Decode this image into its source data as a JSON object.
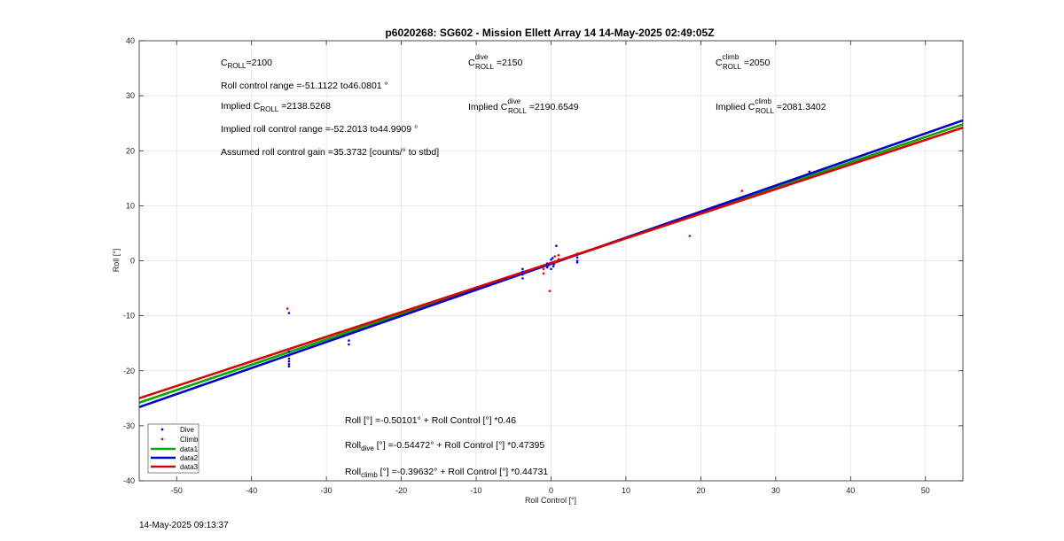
{
  "footer_timestamp": "14-May-2025 09:13:37",
  "annotations": {
    "c_roll_base": "C",
    "c_roll_sub": "ROLL",
    "c_roll_value": "=2100",
    "roll_range": "Roll control range =-51.1122 to46.0801 °",
    "implied_c_prefix": "Implied C",
    "implied_c_sub": "ROLL",
    "implied_c_value": " =2138.5268",
    "implied_range": "Implied roll control range =-52.2013 to44.9909 °",
    "gain": "Assumed roll control gain =35.3732 [counts/° to stbd]",
    "c_dive_base": "C",
    "c_dive_sup": "dive",
    "c_dive_sub": "ROLL",
    "c_dive_value": " =2150",
    "implied_dive_prefix": "Implied C",
    "implied_dive_sup": "dive",
    "implied_dive_sub": "ROLL",
    "implied_dive_value": " =2190.6549",
    "c_climb_base": "C",
    "c_climb_sup": "climb",
    "c_climb_sub": "ROLL",
    "c_climb_value": " =2050",
    "implied_climb_prefix": "Implied C",
    "implied_climb_sup": "climb",
    "implied_climb_sub": "ROLL",
    "implied_climb_value": " =2081.3402",
    "eq_all": "Roll [°] =-0.50101° + Roll Control [°] *0.46",
    "eq_dive_prefix": "Roll",
    "eq_dive_sub": "dive",
    "eq_dive_rest": " [°] =-0.54472° + Roll Control [°] *0.47395",
    "eq_climb_prefix": "Roll",
    "eq_climb_sub": "climb",
    "eq_climb_rest": " [°] =-0.39632° + Roll Control [°] *0.44731"
  },
  "chart_data": {
    "type": "scatter",
    "title": "p6020268: SG602 - Mission Ellett Array 14 14-May-2025 02:49:05Z",
    "xlabel": "Roll Control [°]",
    "ylabel": "Roll [°]",
    "xlim": [
      -55,
      55
    ],
    "ylim": [
      -40,
      40
    ],
    "xticks": [
      -50,
      -40,
      -30,
      -20,
      -10,
      0,
      10,
      20,
      30,
      40,
      50
    ],
    "yticks": [
      -40,
      -30,
      -20,
      -10,
      0,
      10,
      20,
      30,
      40
    ],
    "grid": true,
    "legend_position": "bottom-left",
    "scatter_series": [
      {
        "name": "Dive",
        "color": "#0000ff",
        "points": [
          [
            -35,
            -9.5
          ],
          [
            -35,
            -16.5
          ],
          [
            -35,
            -17.2
          ],
          [
            -35,
            -17.8
          ],
          [
            -35,
            -18.3
          ],
          [
            -35,
            -18.8
          ],
          [
            -35,
            -19.2
          ],
          [
            -27,
            -14.5
          ],
          [
            -27,
            -15.2
          ],
          [
            -3.8,
            -1.5
          ],
          [
            -3.8,
            -2.0
          ],
          [
            -3.8,
            -2.5
          ],
          [
            -3.8,
            -3.2
          ],
          [
            -0.5,
            -0.5
          ],
          [
            -0.5,
            -1.2
          ],
          [
            -0.3,
            -0.8
          ],
          [
            0,
            -1.5
          ],
          [
            0,
            0.2
          ],
          [
            0.2,
            0.5
          ],
          [
            0.4,
            -0.6
          ],
          [
            0.7,
            2.7
          ],
          [
            0.3,
            -1.0
          ],
          [
            3.5,
            1.2
          ],
          [
            3.5,
            0.6
          ],
          [
            3.5,
            0.0
          ],
          [
            3.5,
            -0.3
          ],
          [
            34.5,
            16.2
          ]
        ]
      },
      {
        "name": "Climb",
        "color": "#ff0000",
        "points": [
          [
            -35.2,
            -8.7
          ],
          [
            -0.2,
            -5.5
          ],
          [
            -1.0,
            -1.5
          ],
          [
            -1.0,
            -2.3
          ],
          [
            0.5,
            -0.3
          ],
          [
            0.5,
            0.8
          ],
          [
            1.0,
            1.0
          ],
          [
            1.0,
            0.3
          ],
          [
            0.8,
            -0.2
          ],
          [
            3.5,
            1.3
          ],
          [
            18.5,
            4.5
          ],
          [
            25.5,
            12.7
          ]
        ]
      }
    ],
    "fit_lines": [
      {
        "name": "data1",
        "color": "#00aa00",
        "intercept": -0.50101,
        "slope": 0.46
      },
      {
        "name": "data2",
        "color": "#0000cc",
        "intercept": -0.54472,
        "slope": 0.47395
      },
      {
        "name": "data3",
        "color": "#dd0000",
        "intercept": -0.39632,
        "slope": 0.44731
      }
    ],
    "legend": [
      "Dive",
      "Climb",
      "data1",
      "data2",
      "data3"
    ]
  }
}
